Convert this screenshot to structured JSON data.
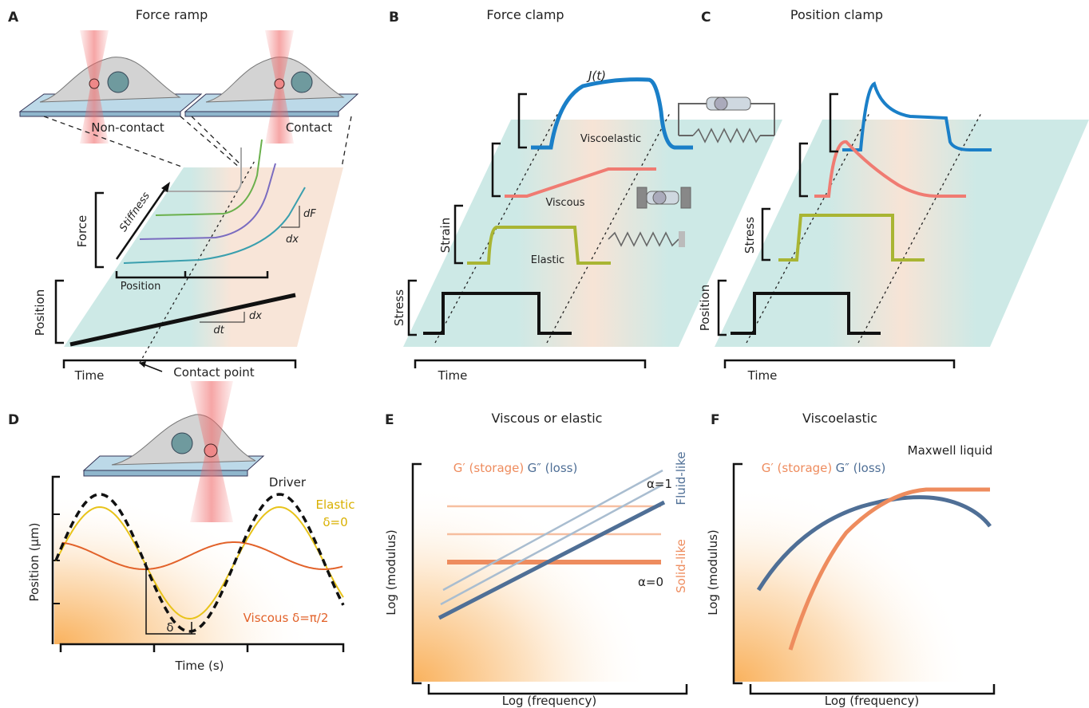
{
  "panels": [
    {
      "letter": "A",
      "title": "Force ramp",
      "labels": [
        "Non-contact",
        "Contact",
        "Force",
        "Stiffness",
        "dF",
        "dx",
        "Position",
        "Position",
        "dt",
        "dx",
        "Time",
        "Contact point"
      ]
    },
    {
      "letter": "B",
      "title": "Force clamp",
      "labels": [
        "J(t)",
        "Viscoelastic",
        "Viscous",
        "Strain",
        "Elastic",
        "Stress",
        "Time"
      ]
    },
    {
      "letter": "C",
      "title": "Position clamp",
      "labels": [
        "Stress",
        "Position",
        "Time"
      ]
    },
    {
      "letter": "D",
      "labels": [
        "Driver",
        "Elastic",
        "δ=0",
        "Position (µm)",
        "Viscous δ=π/2",
        "δ",
        "Time (s)"
      ]
    },
    {
      "letter": "E",
      "title": "Viscous or elastic",
      "labels": [
        "G′ (storage)",
        "G″ (loss)",
        "α=1",
        "Fluid-like",
        "Solid-like",
        "α=0",
        "Log (modulus)",
        "Log (frequency)"
      ]
    },
    {
      "letter": "F",
      "title": "Viscoelastic",
      "labels": [
        "Maxwell liquid",
        "G′ (storage)",
        "G″ (loss)",
        "Log (modulus)",
        "Log (frequency)"
      ]
    }
  ]
}
